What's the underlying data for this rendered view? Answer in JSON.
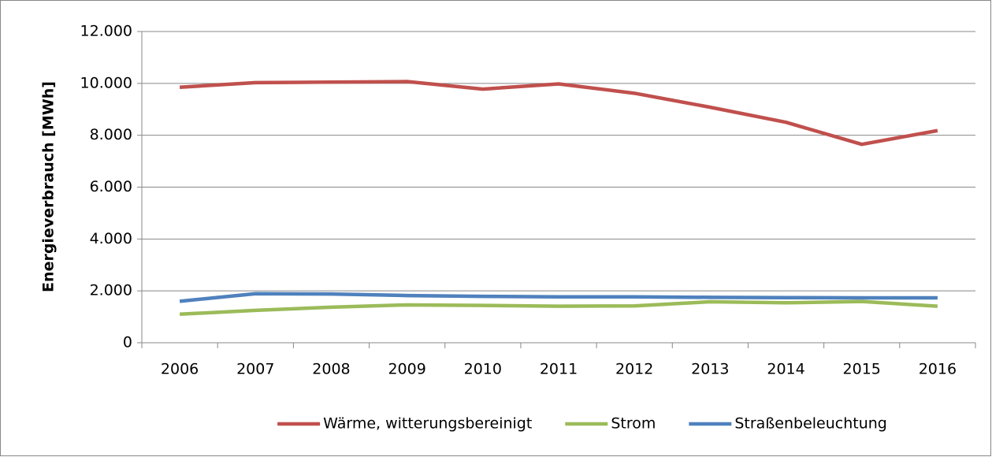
{
  "chart_data": {
    "type": "line",
    "y_label": "Energieverbrauch [MWh]",
    "categories": [
      "2006",
      "2007",
      "2008",
      "2009",
      "2010",
      "2011",
      "2012",
      "2013",
      "2014",
      "2015",
      "2016"
    ],
    "series": [
      {
        "name": "Wärme, witterungsbereinigt",
        "color": "#c0504d",
        "values": [
          9850,
          10030,
          10050,
          10070,
          9780,
          9980,
          9620,
          9080,
          8500,
          7650,
          8180
        ]
      },
      {
        "name": "Strom",
        "color": "#9bbb59",
        "values": [
          1100,
          1250,
          1370,
          1460,
          1440,
          1410,
          1420,
          1580,
          1540,
          1590,
          1410
        ]
      },
      {
        "name": "Straßenbeleuchtung",
        "color": "#4f81bd",
        "values": [
          1600,
          1890,
          1880,
          1820,
          1790,
          1770,
          1770,
          1750,
          1740,
          1730,
          1730
        ]
      }
    ],
    "ylim": [
      0,
      12000
    ],
    "yticks": [
      0,
      {
        "value": 2000,
        "label": "2.000"
      },
      {
        "value": 4000,
        "label": "4.000"
      },
      {
        "value": 6000,
        "label": "6.000"
      },
      {
        "value": 8000,
        "label": "8.000"
      },
      {
        "value": 10000,
        "label": "10.000"
      },
      {
        "value": 12000,
        "label": "12.000"
      }
    ],
    "grid": true,
    "legend": "bottom"
  }
}
